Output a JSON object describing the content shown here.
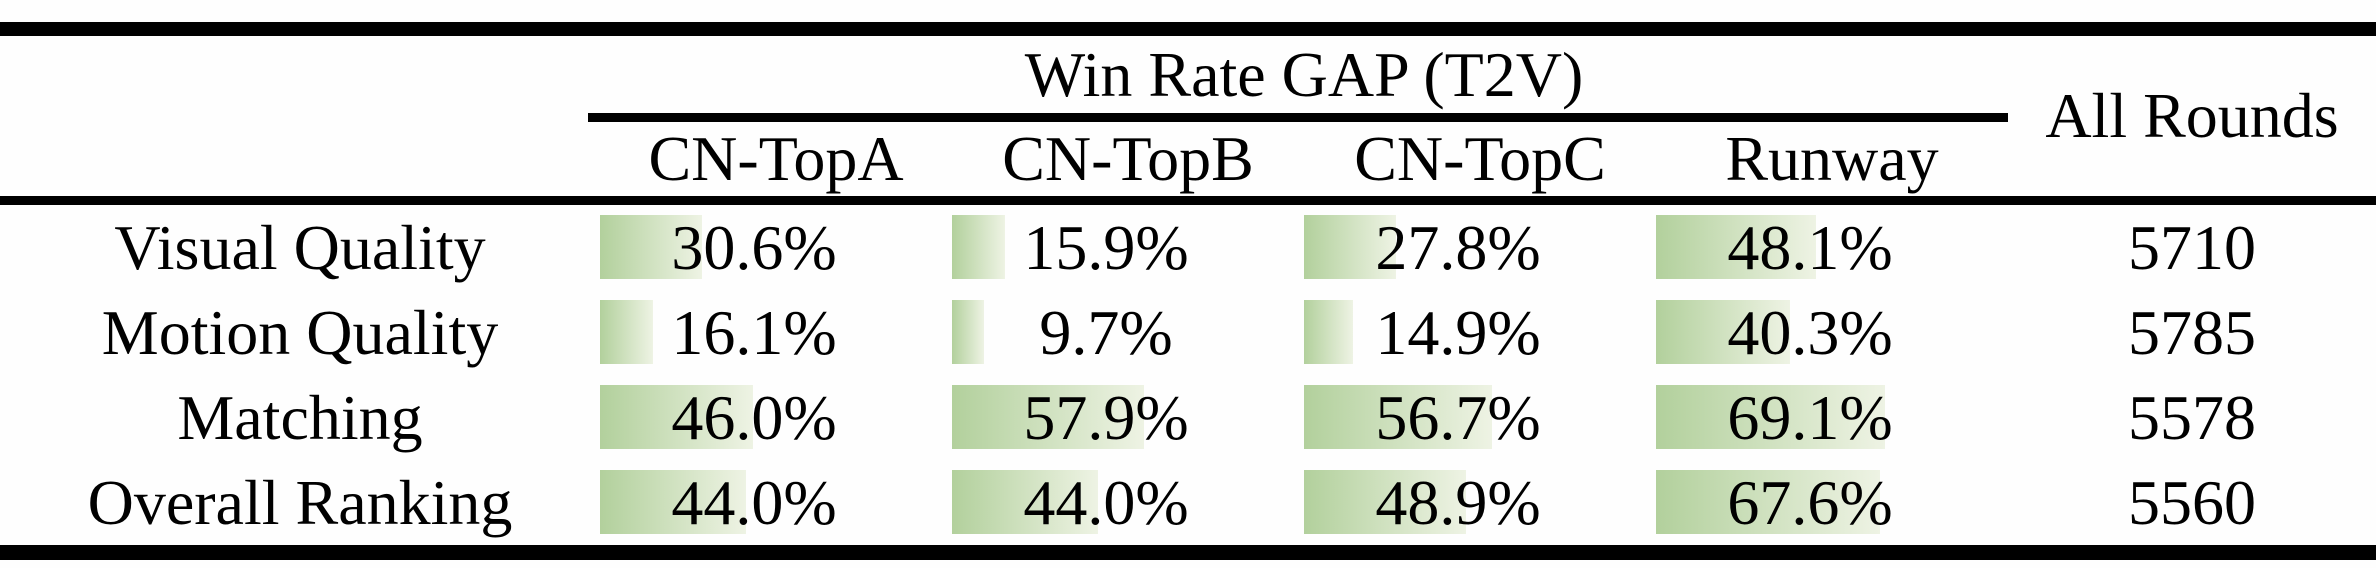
{
  "table": {
    "group_header": "Win Rate GAP (T2V)",
    "all_rounds_header": "All Rounds",
    "columns": [
      "CN-TopA",
      "CN-TopB",
      "CN-TopC",
      "Runway"
    ],
    "rows": [
      {
        "label": "Visual Quality",
        "values": [
          30.6,
          15.9,
          27.8,
          48.1
        ],
        "display": [
          "30.6%",
          "15.9%",
          "27.8%",
          "48.1%"
        ],
        "all_rounds": "5710"
      },
      {
        "label": "Motion Quality",
        "values": [
          16.1,
          9.7,
          14.9,
          40.3
        ],
        "display": [
          "16.1%",
          "9.7%",
          "14.9%",
          "40.3%"
        ],
        "all_rounds": "5785"
      },
      {
        "label": "Matching",
        "values": [
          46.0,
          57.9,
          56.7,
          69.1
        ],
        "display": [
          "46.0%",
          "57.9%",
          "56.7%",
          "69.1%"
        ],
        "all_rounds": "5578"
      },
      {
        "label": "Overall Ranking",
        "values": [
          44.0,
          44.0,
          48.9,
          67.6
        ],
        "display": [
          "44.0%",
          "44.0%",
          "48.9%",
          "67.6%"
        ],
        "all_rounds": "5560"
      }
    ]
  },
  "colors": {
    "bar_gradient_left": "#b2d09c",
    "bar_gradient_right": "#eef3e4",
    "rule_color": "#000000",
    "text_color": "#000000"
  },
  "chart_data": {
    "type": "table",
    "title": "Win Rate GAP (T2V)",
    "categories": [
      "Visual Quality",
      "Motion Quality",
      "Matching",
      "Overall Ranking"
    ],
    "series": [
      {
        "name": "CN-TopA",
        "values": [
          30.6,
          16.1,
          46.0,
          44.0
        ]
      },
      {
        "name": "CN-TopB",
        "values": [
          15.9,
          9.7,
          57.9,
          44.0
        ]
      },
      {
        "name": "CN-TopC",
        "values": [
          27.8,
          14.9,
          56.7,
          48.9
        ]
      },
      {
        "name": "Runway",
        "values": [
          48.1,
          40.3,
          69.1,
          67.6
        ]
      }
    ],
    "all_rounds": [
      5710,
      5785,
      5578,
      5560
    ],
    "unit": "%",
    "value_range": [
      0,
      100
    ],
    "bar_style": "horizontal green gradient data bar inside each cell, length proportional to value, 100% equals full column width"
  }
}
